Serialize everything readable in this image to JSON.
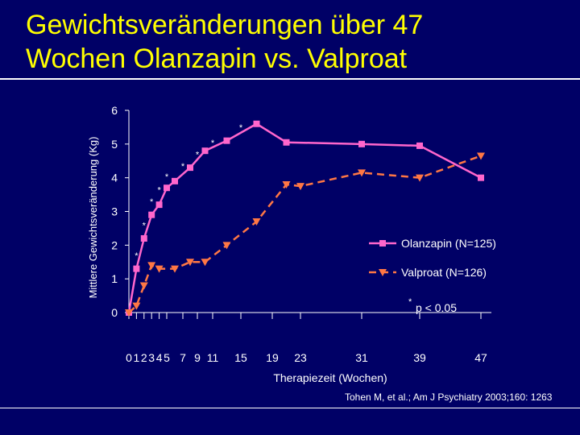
{
  "slide": {
    "title_line1": "Gewichtsveränderungen über 47",
    "title_line2": "Wochen Olanzapin vs. Valproat",
    "citation": "Tohen M, et al.; Am J Psychiatry 2003;160: 1263"
  },
  "colors": {
    "background": "#000066",
    "title": "#FFFF00",
    "olanzapin": "#FF66CC",
    "valproat": "#FF7744",
    "text": "#FFFFFF"
  },
  "chart_data": {
    "type": "line",
    "ylabel": "Mittlere Gewichtsveränderung (Kg)",
    "xlabel": "Therapiezeit (Wochen)",
    "ylim": [
      0,
      6
    ],
    "yticks": [
      0,
      1,
      2,
      3,
      4,
      5,
      6
    ],
    "xticks": [
      {
        "x": 0,
        "label": "0"
      },
      {
        "x": 1,
        "label": "1"
      },
      {
        "x": 2,
        "label": "2"
      },
      {
        "x": 3,
        "label": "3"
      },
      {
        "x": 4,
        "label": "4"
      },
      {
        "x": 5,
        "label": "5"
      },
      {
        "x": 7,
        "label": "7"
      },
      {
        "x": 9,
        "label": "9"
      },
      {
        "x": 11,
        "label": "11"
      },
      {
        "x": 15,
        "label": "15"
      },
      {
        "x": 19,
        "label": "19"
      },
      {
        "x": 23,
        "label": "23"
      },
      {
        "x": 31,
        "label": "31"
      },
      {
        "x": 39,
        "label": "39"
      },
      {
        "x": 47,
        "label": "47"
      }
    ],
    "series": [
      {
        "name": "Olanzapin (N=125)",
        "marker": "square",
        "style": "solid",
        "points": [
          [
            0,
            0
          ],
          [
            1,
            1.3
          ],
          [
            2,
            2.2
          ],
          [
            3,
            2.9
          ],
          [
            4,
            3.2
          ],
          [
            5,
            3.7
          ],
          [
            6,
            3.9
          ],
          [
            8,
            4.3
          ],
          [
            10,
            4.8
          ],
          [
            13,
            5.1
          ],
          [
            17,
            5.6
          ],
          [
            21,
            5.05
          ],
          [
            31,
            5.0
          ],
          [
            39,
            4.95
          ],
          [
            47,
            4.0
          ]
        ]
      },
      {
        "name": "Valproat (N=126)",
        "marker": "triangle-down",
        "style": "dashed",
        "points": [
          [
            0,
            0
          ],
          [
            1,
            0.2
          ],
          [
            2,
            0.8
          ],
          [
            3,
            1.4
          ],
          [
            4,
            1.3
          ],
          [
            6,
            1.3
          ],
          [
            8,
            1.5
          ],
          [
            10,
            1.5
          ],
          [
            13,
            2.0
          ],
          [
            17,
            2.7
          ],
          [
            21,
            3.8
          ],
          [
            23,
            3.75
          ],
          [
            31,
            4.15
          ],
          [
            39,
            4.0
          ],
          [
            47,
            4.65
          ]
        ]
      }
    ],
    "significance": [
      {
        "x": 1,
        "y": 1.6
      },
      {
        "x": 2,
        "y": 2.5
      },
      {
        "x": 3,
        "y": 3.2
      },
      {
        "x": 4,
        "y": 3.55
      },
      {
        "x": 5,
        "y": 3.95
      },
      {
        "x": 7,
        "y": 4.25
      },
      {
        "x": 9,
        "y": 4.6
      },
      {
        "x": 11,
        "y": 4.95
      },
      {
        "x": 15,
        "y": 5.4
      }
    ],
    "legend": {
      "position": "right",
      "significance_marker": "*",
      "significance_label": "p < 0.05"
    }
  }
}
